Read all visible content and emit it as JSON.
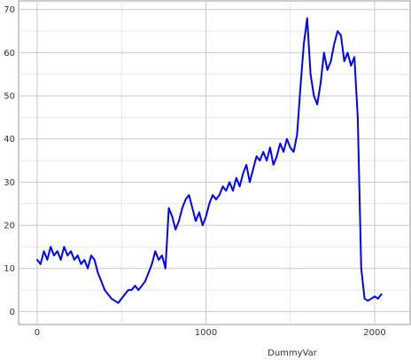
{
  "chart_data": {
    "type": "line",
    "title": "",
    "xlabel": "DummyVar",
    "ylabel": "",
    "xlim": [
      -110,
      2210
    ],
    "ylim": [
      -3,
      72
    ],
    "xticks": [
      0,
      1000,
      2000
    ],
    "yticks": [
      0,
      10,
      20,
      30,
      40,
      50,
      60,
      70
    ],
    "grid": true,
    "line_color": "#0000ff",
    "series": [
      {
        "name": "",
        "x": [
          0,
          20,
          40,
          60,
          80,
          100,
          120,
          140,
          160,
          180,
          200,
          220,
          240,
          260,
          280,
          300,
          320,
          340,
          360,
          380,
          400,
          420,
          440,
          460,
          480,
          500,
          520,
          540,
          560,
          580,
          600,
          620,
          640,
          660,
          680,
          700,
          720,
          740,
          760,
          780,
          800,
          820,
          840,
          860,
          880,
          900,
          920,
          940,
          960,
          980,
          1000,
          1020,
          1040,
          1060,
          1080,
          1100,
          1120,
          1140,
          1160,
          1180,
          1200,
          1220,
          1240,
          1260,
          1280,
          1300,
          1320,
          1340,
          1360,
          1380,
          1400,
          1420,
          1440,
          1460,
          1480,
          1500,
          1520,
          1540,
          1560,
          1580,
          1600,
          1620,
          1640,
          1660,
          1680,
          1700,
          1720,
          1740,
          1760,
          1780,
          1800,
          1820,
          1840,
          1860,
          1880,
          1900,
          1920,
          1940,
          1960,
          1980,
          2000,
          2020,
          2040
        ],
        "values": [
          12,
          11,
          14,
          12,
          15,
          13,
          14,
          12,
          15,
          13,
          14,
          12,
          13,
          11,
          12,
          10,
          13,
          12,
          9,
          7,
          5,
          4,
          3,
          2.5,
          2,
          3,
          4,
          5,
          5,
          6,
          5,
          6,
          7,
          9,
          11,
          14,
          12,
          13,
          10,
          24,
          22,
          19,
          21,
          24,
          26,
          27,
          24,
          21,
          23,
          20,
          22,
          25,
          27,
          26,
          27,
          29,
          28,
          30,
          28,
          31,
          29,
          32,
          34,
          30,
          33,
          36,
          35,
          37,
          35,
          38,
          34,
          36,
          39,
          37,
          40,
          38,
          37,
          41,
          52,
          62,
          68,
          55,
          50,
          48,
          53,
          60,
          56,
          58,
          62,
          65,
          64,
          58,
          60,
          57,
          59,
          45,
          10,
          3,
          2.5,
          3,
          3.5,
          3,
          4
        ]
      }
    ]
  }
}
